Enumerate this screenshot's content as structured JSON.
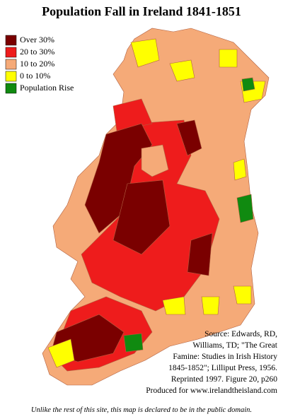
{
  "title": "Population Fall in Ireland 1841-1851",
  "legend": [
    {
      "label": "Over 30%",
      "color": "#7a0000"
    },
    {
      "label": "20 to 30%",
      "color": "#ee1c1c"
    },
    {
      "label": "10 to 20%",
      "color": "#f5aa78"
    },
    {
      "label": "0 to 10%",
      "color": "#ffff00"
    },
    {
      "label": "Population Rise",
      "color": "#108a10"
    }
  ],
  "source": [
    "Source: Edwards, RD,",
    "Williams, TD; \"The Great",
    "Famine: Studies in Irish History",
    "1845-1852\"; Lilliput Press, 1956.",
    "Reprinted 1997. Figure 20, p260",
    "Produced for www.irelandtheisland.com"
  ],
  "footer": "Unlike the rest of this site, this map is declared to be in the public domain."
}
